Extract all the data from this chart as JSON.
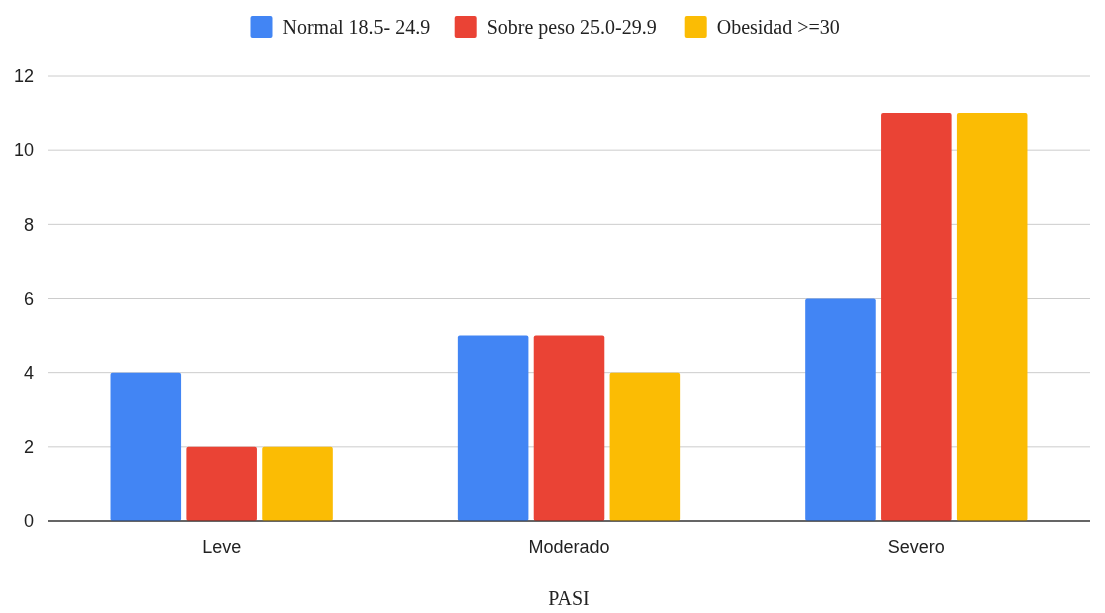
{
  "chart_data": {
    "type": "bar",
    "xlabel": "PASI",
    "categories": [
      "Leve",
      "Moderado",
      "Severo"
    ],
    "series": [
      {
        "name": "Normal 18.5- 24.9",
        "color": "#4285f4",
        "values": [
          4,
          5,
          6
        ]
      },
      {
        "name": "Sobre peso 25.0-29.9",
        "color": "#ea4335",
        "values": [
          2,
          5,
          11
        ]
      },
      {
        "name": "Obesidad >=30",
        "color": "#fbbc04",
        "values": [
          2,
          4,
          11
        ]
      }
    ],
    "ylim": [
      0,
      12
    ],
    "yticks": [
      0,
      2,
      4,
      6,
      8,
      10,
      12
    ],
    "grid": "y",
    "legend": "top"
  }
}
